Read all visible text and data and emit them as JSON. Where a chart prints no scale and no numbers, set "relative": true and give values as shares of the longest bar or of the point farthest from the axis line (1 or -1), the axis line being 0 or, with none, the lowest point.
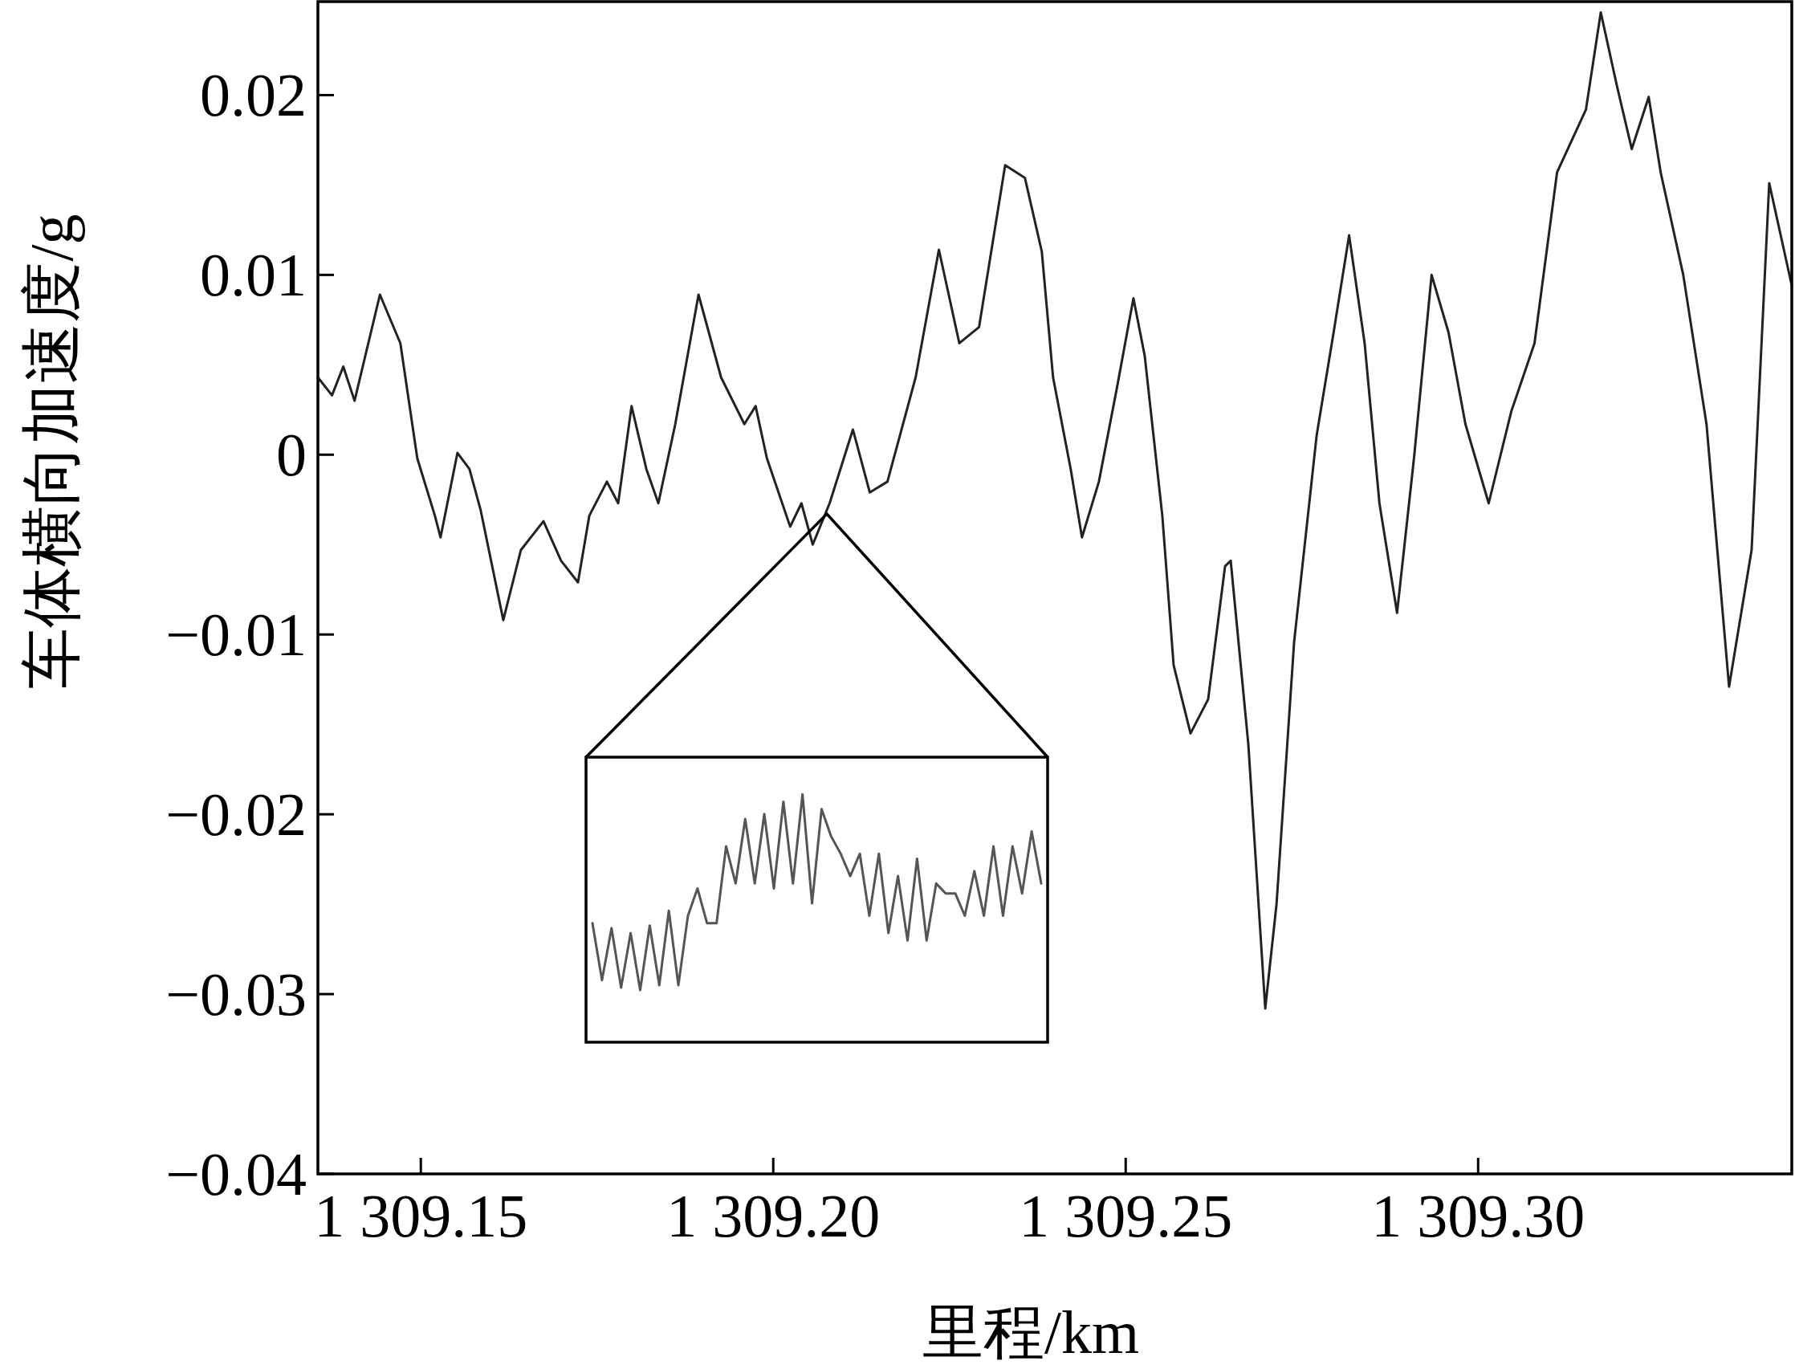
{
  "chart_data": [
    {
      "type": "line",
      "xlabel": "里程/km",
      "ylabel": "车体横向加速度/g",
      "xlim": [
        1309.1354,
        1309.3445
      ],
      "ylim": [
        -0.04,
        0.0252
      ],
      "xticks": [
        {
          "value": 1309.15,
          "label": "1 309.15"
        },
        {
          "value": 1309.2,
          "label": "1 309.20"
        },
        {
          "value": 1309.25,
          "label": "1 309.25"
        },
        {
          "value": 1309.3,
          "label": "1 309.30"
        }
      ],
      "yticks": [
        {
          "value": -0.04,
          "label": "−0.04"
        },
        {
          "value": -0.03,
          "label": "−0.03"
        },
        {
          "value": -0.02,
          "label": "−0.02"
        },
        {
          "value": -0.01,
          "label": "−0.01"
        },
        0,
        0.01,
        0.02
      ],
      "x": [
        1309.1354,
        1309.1374,
        1309.139,
        1309.1406,
        1309.1442,
        1309.1471,
        1309.1495,
        1309.152,
        1309.1528,
        1309.1552,
        1309.1569,
        1309.1585,
        1309.1617,
        1309.1642,
        1309.1674,
        1309.1699,
        1309.1723,
        1309.1739,
        1309.1764,
        1309.178,
        1309.1799,
        1309.182,
        1309.1837,
        1309.1861,
        1309.1894,
        1309.1926,
        1309.1959,
        1309.1975,
        1309.1991,
        1309.2024,
        1309.204,
        1309.2056,
        1309.208,
        1309.2113,
        1309.2137,
        1309.2162,
        1309.2202,
        1309.2235,
        1309.2264,
        1309.2292,
        1309.2329,
        1309.2357,
        1309.2381,
        1309.2397,
        1309.2422,
        1309.2438,
        1309.2462,
        1309.2487,
        1309.2511,
        1309.2527,
        1309.2552,
        1309.2568,
        1309.2592,
        1309.2617,
        1309.2641,
        1309.2649,
        1309.2674,
        1309.2698,
        1309.2714,
        1309.2739,
        1309.2771,
        1309.2795,
        1309.2817,
        1309.2839,
        1309.286,
        1309.2885,
        1309.2909,
        1309.2934,
        1309.2958,
        1309.2982,
        1309.3015,
        1309.3047,
        1309.308,
        1309.3112,
        1309.3153,
        1309.3174,
        1309.3197,
        1309.3218,
        1309.3242,
        1309.3259,
        1309.3291,
        1309.3324,
        1309.3356,
        1309.3388,
        1309.3413,
        1309.3445
      ],
      "series": [
        {
          "color": "#222222",
          "values": [
            0.0043,
            0.0033,
            0.0049,
            0.003,
            0.0089,
            0.0062,
            -0.0002,
            -0.0034,
            -0.0046,
            0.0001,
            -0.0008,
            -0.0031,
            -0.0092,
            -0.0053,
            -0.0037,
            -0.0059,
            -0.0071,
            -0.0034,
            -0.0015,
            -0.0027,
            0.0027,
            -0.0008,
            -0.0027,
            0.0017,
            0.0089,
            0.0043,
            0.0017,
            0.0027,
            -0.0002,
            -0.004,
            -0.0027,
            -0.005,
            -0.0027,
            0.0014,
            -0.0021,
            -0.0015,
            0.0043,
            0.0114,
            0.0062,
            0.0071,
            0.0161,
            0.0154,
            0.0113,
            0.0043,
            -0.0008,
            -0.0046,
            -0.0015,
            0.0036,
            0.0087,
            0.0055,
            -0.0034,
            -0.0117,
            -0.0155,
            -0.0136,
            -0.0062,
            -0.0059,
            -0.0161,
            -0.0308,
            -0.025,
            -0.0104,
            0.0011,
            0.0068,
            0.0122,
            0.0062,
            -0.0027,
            -0.0088,
            -0.0002,
            0.01,
            0.0068,
            0.0017,
            -0.0027,
            0.0024,
            0.0062,
            0.0157,
            0.0192,
            0.0246,
            0.0205,
            0.017,
            0.0199,
            0.0157,
            0.01,
            0.0017,
            -0.0129,
            -0.0053,
            0.0151,
            0.0094
          ]
        }
      ]
    },
    {
      "type": "line",
      "relative": true,
      "categories": [
        null,
        null,
        null,
        null,
        null,
        null,
        null,
        null,
        null,
        null,
        null,
        null,
        null,
        null,
        null,
        null,
        null,
        null,
        null,
        null,
        null,
        null,
        null,
        null,
        null,
        null,
        null,
        null,
        null,
        null,
        null,
        null,
        null,
        null,
        null,
        null,
        null,
        null,
        null,
        null,
        null,
        null,
        null,
        null,
        null,
        null,
        null,
        null
      ],
      "series": [
        {
          "color": "#555555",
          "values": [
            0.48,
            0.25,
            0.46,
            0.22,
            0.44,
            0.21,
            0.47,
            0.23,
            0.53,
            0.23,
            0.51,
            0.62,
            0.48,
            0.48,
            0.79,
            0.64,
            0.9,
            0.64,
            0.92,
            0.62,
            0.97,
            0.64,
            1,
            0.56,
            0.94,
            0.83,
            0.76,
            0.67,
            0.76,
            0.51,
            0.76,
            0.44,
            0.67,
            0.41,
            0.74,
            0.41,
            0.64,
            0.6,
            0.6,
            0.51,
            0.69,
            0.51,
            0.79,
            0.51,
            0.79,
            0.6,
            0.85,
            0.64
          ]
        }
      ]
    }
  ]
}
